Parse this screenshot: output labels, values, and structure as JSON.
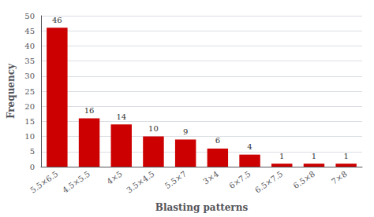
{
  "chart_data": {
    "type": "bar",
    "categories": [
      "5.5×6.5",
      "4.5×5.5",
      "4×5",
      "3.5×4.5",
      "5.5×7",
      "3×4",
      "6×7.5",
      "6.5×7.5",
      "6.5×8",
      "7×8"
    ],
    "values": [
      46,
      16,
      14,
      10,
      9,
      6,
      4,
      1,
      1,
      1
    ],
    "color": "#cc0000",
    "xlabel": "Blasting patterns",
    "ylabel": "Frequency",
    "ylim": [
      0,
      50
    ],
    "yticks": [
      0,
      5,
      10,
      15,
      20,
      25,
      30,
      35,
      40,
      45,
      50
    ],
    "grid": true,
    "data_labels": true
  }
}
